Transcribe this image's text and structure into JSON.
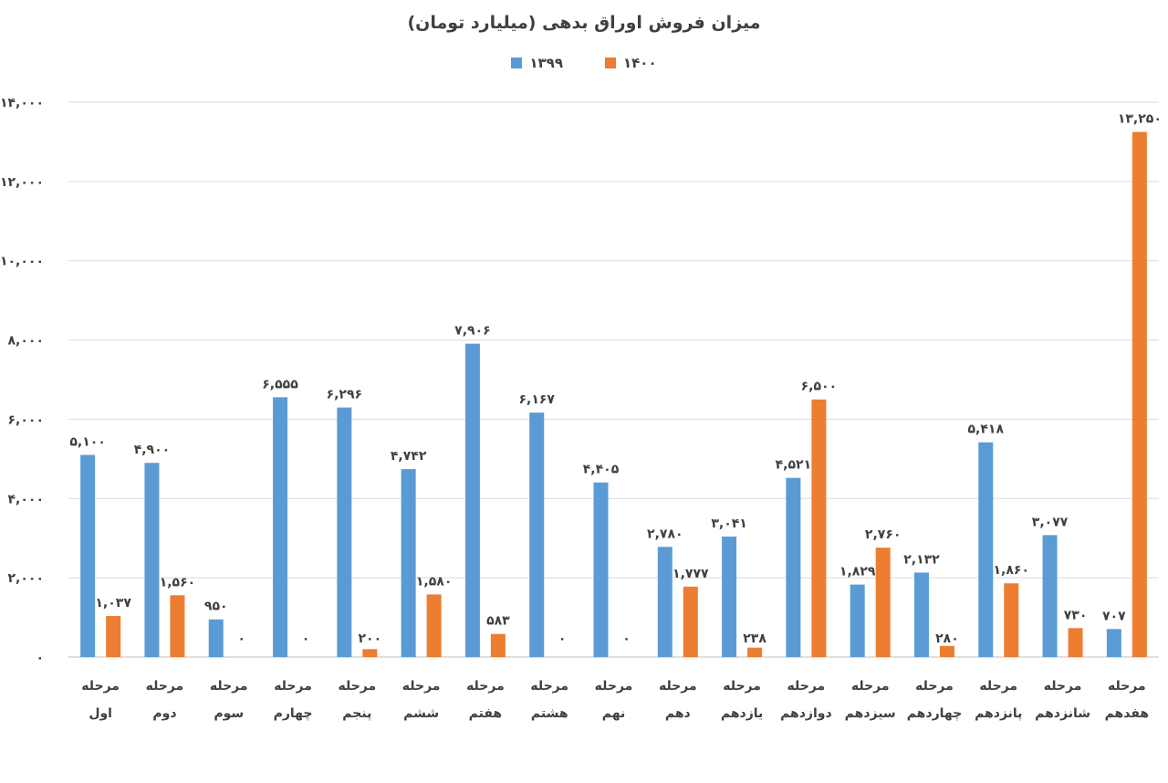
{
  "chart_data": {
    "type": "bar",
    "title": "میزان فروش اوراق بدهی (میلیارد تومان)",
    "xlabel": "",
    "ylabel": "",
    "ylim": [
      0,
      14000
    ],
    "yticks": [
      0,
      2000,
      4000,
      6000,
      8000,
      10000,
      12000,
      14000
    ],
    "ytick_labels": [
      "۰",
      "۲,۰۰۰",
      "۴,۰۰۰",
      "۶,۰۰۰",
      "۸,۰۰۰",
      "۱۰,۰۰۰",
      "۱۲,۰۰۰",
      "۱۴,۰۰۰"
    ],
    "grid": true,
    "legend_position": "top",
    "categories": [
      [
        "مرحله",
        "اول"
      ],
      [
        "مرحله",
        "دوم"
      ],
      [
        "مرحله",
        "سوم"
      ],
      [
        "مرحله",
        "چهارم"
      ],
      [
        "مرحله",
        "پنجم"
      ],
      [
        "مرحله",
        "ششم"
      ],
      [
        "مرحله",
        "هفتم"
      ],
      [
        "مرحله",
        "هشتم"
      ],
      [
        "مرحله",
        "نهم"
      ],
      [
        "مرحله",
        "دهم"
      ],
      [
        "مرحله",
        "یازدهم"
      ],
      [
        "مرحله",
        "دوازدهم"
      ],
      [
        "مرحله",
        "سیزدهم"
      ],
      [
        "مرحله",
        "چهاردهم"
      ],
      [
        "مرحله",
        "پانزدهم"
      ],
      [
        "مرحله",
        "شانزدهم"
      ],
      [
        "مرحله",
        "هفدهم"
      ]
    ],
    "series": [
      {
        "name": "۱۳۹۹",
        "color": "#5b9bd5",
        "values": [
          5100,
          4900,
          950,
          6555,
          6296,
          4742,
          7906,
          6167,
          4405,
          2780,
          3041,
          4521,
          1829,
          2132,
          5418,
          3077,
          707
        ],
        "labels": [
          "۵,۱۰۰",
          "۴,۹۰۰",
          "۹۵۰",
          "۶,۵۵۵",
          "۶,۲۹۶",
          "۴,۷۴۲",
          "۷,۹۰۶",
          "۶,۱۶۷",
          "۴,۴۰۵",
          "۲,۷۸۰",
          "۳,۰۴۱",
          "۴,۵۲۱",
          "۱,۸۲۹",
          "۲,۱۳۲",
          "۵,۴۱۸",
          "۳,۰۷۷",
          "۷۰۷"
        ]
      },
      {
        "name": "۱۴۰۰",
        "color": "#ed7d31",
        "values": [
          1037,
          1560,
          0,
          0,
          200,
          1580,
          583,
          0,
          0,
          1777,
          238,
          6500,
          2760,
          280,
          1860,
          730,
          13250
        ],
        "labels": [
          "۱,۰۳۷",
          "۱,۵۶۰",
          "۰",
          "۰",
          "۲۰۰",
          "۱,۵۸۰",
          "۵۸۳",
          "۰",
          "۰",
          "۱,۷۷۷",
          "۲۳۸",
          "۶,۵۰۰",
          "۲,۷۶۰",
          "۲۸۰",
          "۱,۸۶۰",
          "۷۳۰",
          "۱۳,۲۵۰"
        ]
      }
    ]
  }
}
